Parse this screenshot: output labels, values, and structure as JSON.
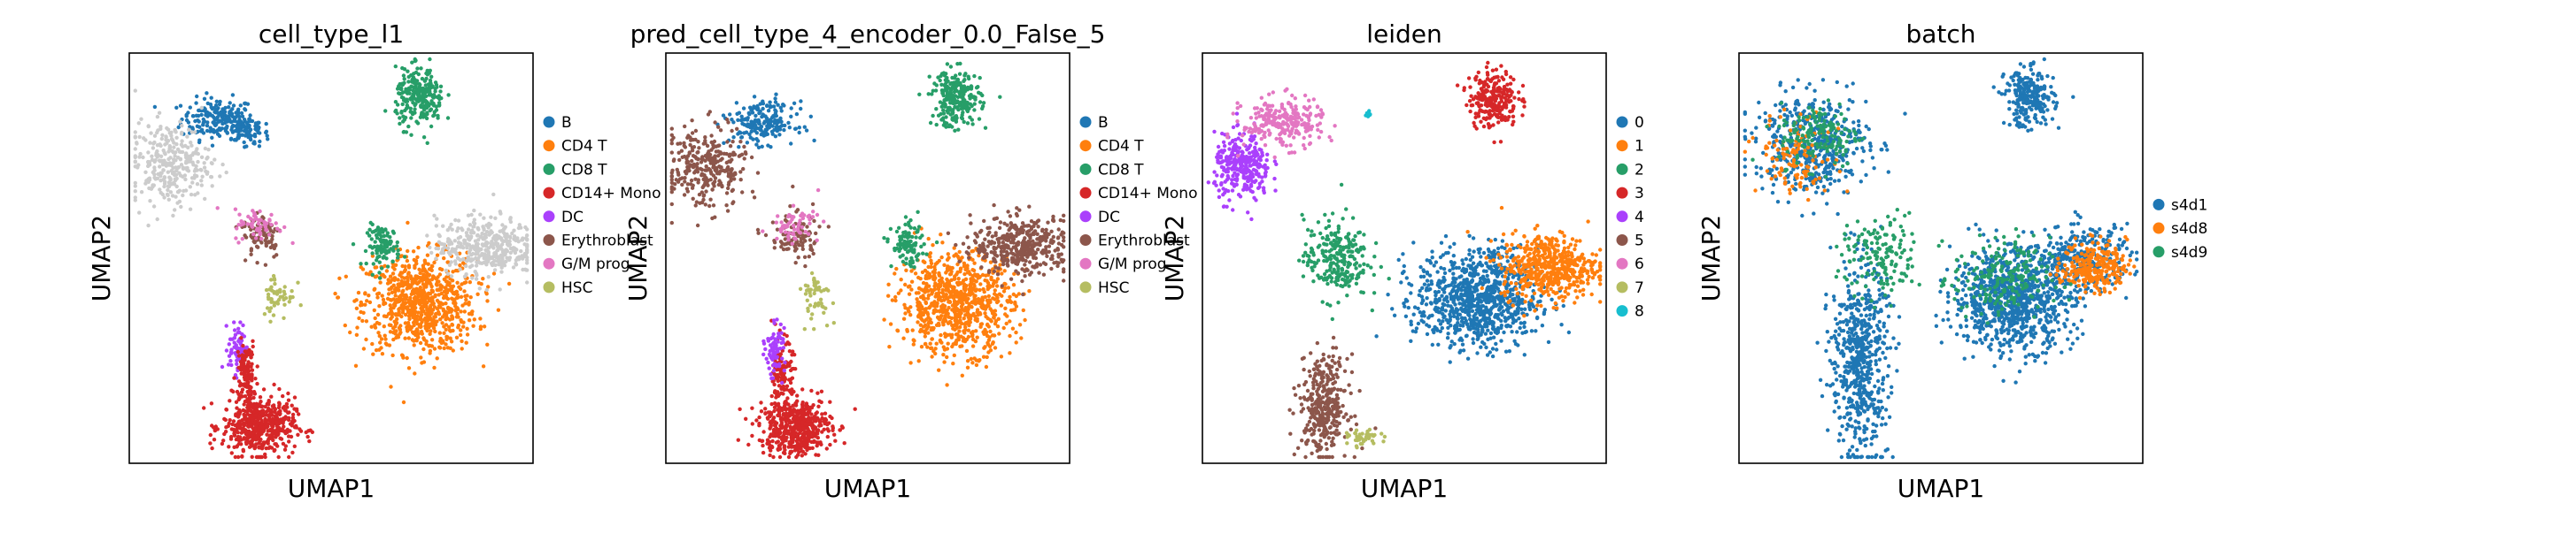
{
  "chart_data": [
    {
      "type": "scatter",
      "title": "cell_type_l1",
      "xlabel": "UMAP1",
      "ylabel": "UMAP2",
      "grid": false,
      "legend_placement": "right",
      "categories": [
        "B",
        "CD4 T",
        "CD8 T",
        "CD14+ Mono",
        "DC",
        "Erythroblast",
        "G/M prog",
        "HSC"
      ],
      "colors": [
        "#1f77b4",
        "#ff7f0e",
        "#279e68",
        "#d62728",
        "#aa40fc",
        "#8c564b",
        "#e377c2",
        "#b5bd61"
      ],
      "other_color": "#cccccc",
      "clusters": [
        {
          "category": "B",
          "cx": 0.22,
          "cy": 0.84,
          "sx": 0.045,
          "sy": 0.025,
          "n": 200
        },
        {
          "category": "CD4 T",
          "cx": 0.72,
          "cy": 0.39,
          "sx": 0.07,
          "sy": 0.06,
          "n": 800
        },
        {
          "category": "CD8 T",
          "cx": 0.63,
          "cy": 0.53,
          "sx": 0.02,
          "sy": 0.025,
          "n": 100
        },
        {
          "category": "CD14+ Mono",
          "cx": 0.32,
          "cy": 0.09,
          "sx": 0.045,
          "sy": 0.035,
          "n": 500
        },
        {
          "category": "DC",
          "cx": 0.27,
          "cy": 0.28,
          "sx": 0.012,
          "sy": 0.03,
          "n": 80
        },
        {
          "category": "Erythroblast",
          "cx": 0.33,
          "cy": 0.56,
          "sx": 0.025,
          "sy": 0.03,
          "n": 80
        },
        {
          "category": "G/M prog",
          "cx": 0.32,
          "cy": 0.58,
          "sx": 0.03,
          "sy": 0.02,
          "n": 60
        },
        {
          "category": "HSC",
          "cx": 0.37,
          "cy": 0.41,
          "sx": 0.02,
          "sy": 0.03,
          "n": 50
        },
        {
          "category": "other",
          "cx": 0.1,
          "cy": 0.73,
          "sx": 0.05,
          "sy": 0.05,
          "n": 300
        },
        {
          "category": "other",
          "cx": 0.88,
          "cy": 0.53,
          "sx": 0.06,
          "sy": 0.035,
          "n": 400
        },
        {
          "category": "B",
          "cx": 0.29,
          "cy": 0.81,
          "sx": 0.02,
          "sy": 0.02,
          "n": 80
        },
        {
          "category": "CD8 T",
          "cx": 0.72,
          "cy": 0.89,
          "sx": 0.03,
          "sy": 0.035,
          "n": 250
        },
        {
          "category": "CD14+ Mono",
          "cx": 0.29,
          "cy": 0.22,
          "sx": 0.012,
          "sy": 0.04,
          "n": 120
        }
      ]
    },
    {
      "type": "scatter",
      "title": "pred_cell_type_4_encoder_0.0_False_5",
      "xlabel": "UMAP1",
      "ylabel": "UMAP2",
      "grid": false,
      "legend_placement": "right",
      "categories": [
        "B",
        "CD4 T",
        "CD8 T",
        "CD14+ Mono",
        "DC",
        "Erythroblast",
        "G/M prog",
        "HSC"
      ],
      "colors": [
        "#1f77b4",
        "#ff7f0e",
        "#279e68",
        "#d62728",
        "#aa40fc",
        "#8c564b",
        "#e377c2",
        "#b5bd61"
      ],
      "other_color": "#cccccc",
      "clusters": [
        {
          "category": "B",
          "cx": 0.24,
          "cy": 0.83,
          "sx": 0.04,
          "sy": 0.025,
          "n": 200
        },
        {
          "category": "Erythroblast",
          "cx": 0.1,
          "cy": 0.72,
          "sx": 0.05,
          "sy": 0.05,
          "n": 300
        },
        {
          "category": "CD4 T",
          "cx": 0.72,
          "cy": 0.39,
          "sx": 0.07,
          "sy": 0.06,
          "n": 800
        },
        {
          "category": "Erythroblast",
          "cx": 0.88,
          "cy": 0.53,
          "sx": 0.06,
          "sy": 0.035,
          "n": 400
        },
        {
          "category": "CD8 T",
          "cx": 0.6,
          "cy": 0.53,
          "sx": 0.02,
          "sy": 0.025,
          "n": 100
        },
        {
          "category": "CD8 T",
          "cx": 0.72,
          "cy": 0.89,
          "sx": 0.03,
          "sy": 0.035,
          "n": 250
        },
        {
          "category": "CD14+ Mono",
          "cx": 0.32,
          "cy": 0.09,
          "sx": 0.045,
          "sy": 0.035,
          "n": 500
        },
        {
          "category": "CD14+ Mono",
          "cx": 0.29,
          "cy": 0.22,
          "sx": 0.012,
          "sy": 0.04,
          "n": 120
        },
        {
          "category": "DC",
          "cx": 0.27,
          "cy": 0.28,
          "sx": 0.012,
          "sy": 0.03,
          "n": 80
        },
        {
          "category": "Erythroblast",
          "cx": 0.32,
          "cy": 0.55,
          "sx": 0.03,
          "sy": 0.03,
          "n": 100
        },
        {
          "category": "G/M prog",
          "cx": 0.32,
          "cy": 0.58,
          "sx": 0.03,
          "sy": 0.02,
          "n": 60
        },
        {
          "category": "HSC",
          "cx": 0.37,
          "cy": 0.41,
          "sx": 0.02,
          "sy": 0.03,
          "n": 50
        }
      ]
    },
    {
      "type": "scatter",
      "title": "leiden",
      "xlabel": "UMAP1",
      "ylabel": "UMAP2",
      "grid": false,
      "legend_placement": "right",
      "categories": [
        "0",
        "1",
        "2",
        "3",
        "4",
        "5",
        "6",
        "7",
        "8"
      ],
      "colors": [
        "#1f77b4",
        "#ff7f0e",
        "#279e68",
        "#d62728",
        "#aa40fc",
        "#8c564b",
        "#e377c2",
        "#b5bd61",
        "#17becf"
      ],
      "clusters": [
        {
          "category": "0",
          "cx": 0.68,
          "cy": 0.4,
          "sx": 0.075,
          "sy": 0.06,
          "n": 900
        },
        {
          "category": "1",
          "cx": 0.86,
          "cy": 0.48,
          "sx": 0.06,
          "sy": 0.04,
          "n": 500
        },
        {
          "category": "2",
          "cx": 0.33,
          "cy": 0.5,
          "sx": 0.04,
          "sy": 0.05,
          "n": 250
        },
        {
          "category": "3",
          "cx": 0.72,
          "cy": 0.89,
          "sx": 0.03,
          "sy": 0.035,
          "n": 250
        },
        {
          "category": "4",
          "cx": 0.1,
          "cy": 0.72,
          "sx": 0.035,
          "sy": 0.04,
          "n": 300
        },
        {
          "category": "5",
          "cx": 0.3,
          "cy": 0.14,
          "sx": 0.03,
          "sy": 0.06,
          "n": 350
        },
        {
          "category": "6",
          "cx": 0.2,
          "cy": 0.83,
          "sx": 0.05,
          "sy": 0.03,
          "n": 250
        },
        {
          "category": "7",
          "cx": 0.4,
          "cy": 0.06,
          "sx": 0.02,
          "sy": 0.01,
          "n": 40
        },
        {
          "category": "8",
          "cx": 0.41,
          "cy": 0.85,
          "sx": 0.004,
          "sy": 0.004,
          "n": 10
        }
      ]
    },
    {
      "type": "scatter",
      "title": "batch",
      "xlabel": "UMAP1",
      "ylabel": "UMAP2",
      "grid": false,
      "legend_placement": "right",
      "categories": [
        "s4d1",
        "s4d8",
        "s4d9"
      ],
      "colors": [
        "#1f77b4",
        "#ff7f0e",
        "#279e68"
      ],
      "clusters": [
        {
          "category": "s4d1",
          "cx": 0.68,
          "cy": 0.4,
          "sx": 0.075,
          "sy": 0.06,
          "n": 900
        },
        {
          "category": "s4d1",
          "cx": 0.85,
          "cy": 0.5,
          "sx": 0.06,
          "sy": 0.04,
          "n": 300
        },
        {
          "category": "s4d1",
          "cx": 0.72,
          "cy": 0.89,
          "sx": 0.03,
          "sy": 0.035,
          "n": 250
        },
        {
          "category": "s4d1",
          "cx": 0.18,
          "cy": 0.78,
          "sx": 0.07,
          "sy": 0.06,
          "n": 500
        },
        {
          "category": "s4d1",
          "cx": 0.3,
          "cy": 0.25,
          "sx": 0.035,
          "sy": 0.12,
          "n": 600
        },
        {
          "category": "s4d8",
          "cx": 0.88,
          "cy": 0.48,
          "sx": 0.04,
          "sy": 0.03,
          "n": 250
        },
        {
          "category": "s4d8",
          "cx": 0.15,
          "cy": 0.75,
          "sx": 0.05,
          "sy": 0.05,
          "n": 120
        },
        {
          "category": "s4d9",
          "cx": 0.35,
          "cy": 0.5,
          "sx": 0.05,
          "sy": 0.05,
          "n": 150
        },
        {
          "category": "s4d9",
          "cx": 0.65,
          "cy": 0.45,
          "sx": 0.06,
          "sy": 0.05,
          "n": 200
        },
        {
          "category": "s4d9",
          "cx": 0.2,
          "cy": 0.8,
          "sx": 0.05,
          "sy": 0.04,
          "n": 150
        }
      ]
    }
  ]
}
